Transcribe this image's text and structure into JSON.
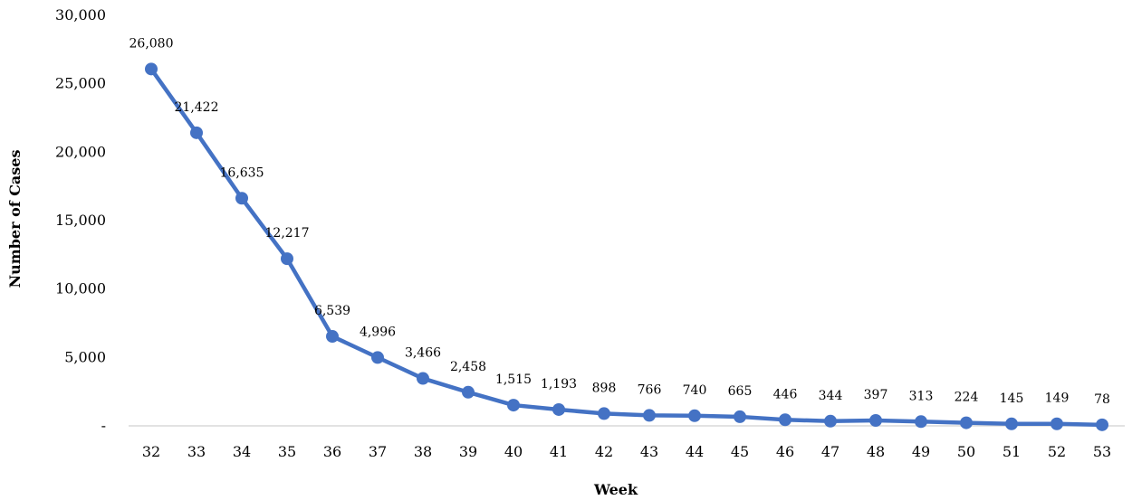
{
  "chart_data": {
    "type": "line",
    "xlabel": "Week",
    "ylabel": "Number of Cases",
    "categories": [
      "32",
      "33",
      "34",
      "35",
      "36",
      "37",
      "38",
      "39",
      "40",
      "41",
      "42",
      "43",
      "44",
      "45",
      "46",
      "47",
      "48",
      "49",
      "50",
      "51",
      "52",
      "53"
    ],
    "series": [
      {
        "values": [
          26080,
          21422,
          16635,
          12217,
          6539,
          4996,
          3466,
          2458,
          1515,
          1193,
          898,
          766,
          740,
          665,
          446,
          344,
          397,
          313,
          224,
          145,
          149,
          78
        ],
        "labels": [
          "26,080",
          "21,422",
          "16,635",
          "12,217",
          "6,539",
          "4,996",
          "3,466",
          "2,458",
          "1,515",
          "1,193",
          "898",
          "766",
          "740",
          "665",
          "446",
          "344",
          "397",
          "313",
          "224",
          "145",
          "149",
          "78"
        ]
      }
    ],
    "ylim": [
      0,
      30000
    ],
    "yticks": [
      0,
      5000,
      10000,
      15000,
      20000,
      25000,
      30000
    ],
    "ytick_labels": [
      "-",
      "5,000",
      "10,000",
      "15,000",
      "20,000",
      "25,000",
      "30,000"
    ],
    "grid": false,
    "line_color": "#4472C4",
    "axis_color": "#D9D9D9"
  }
}
